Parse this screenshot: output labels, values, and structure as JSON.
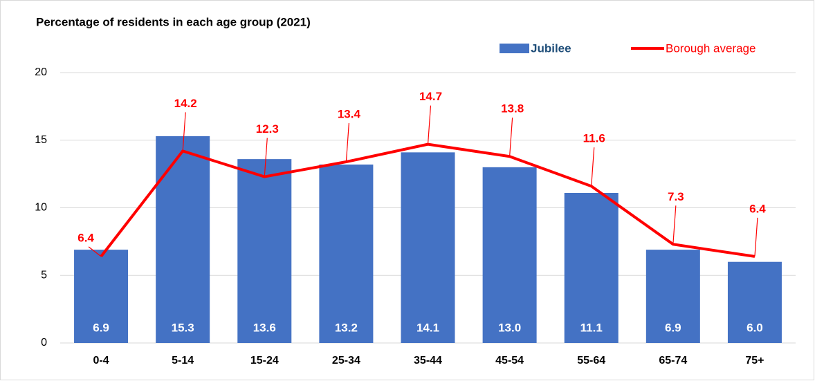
{
  "chart_data": {
    "type": "bar",
    "title": "Percentage of residents in each age group (2021)",
    "categories": [
      "0-4",
      "5-14",
      "15-24",
      "25-34",
      "35-44",
      "45-54",
      "55-64",
      "65-74",
      "75+"
    ],
    "series": [
      {
        "name": "Jubilee",
        "type": "bar",
        "color": "#4472c4",
        "values": [
          6.9,
          15.3,
          13.6,
          13.2,
          14.1,
          13.0,
          11.1,
          6.9,
          6.0
        ],
        "value_labels": [
          "6.9",
          "15.3",
          "13.6",
          "13.2",
          "14.1",
          "13.0",
          "11.1",
          "6.9",
          "6.0"
        ]
      },
      {
        "name": "Borough average",
        "type": "line",
        "color": "#ff0000",
        "values": [
          6.4,
          14.2,
          12.3,
          13.4,
          14.7,
          13.8,
          11.6,
          7.3,
          6.4
        ]
      }
    ],
    "ylim": [
      0,
      20
    ],
    "yticks": [
      0,
      5,
      10,
      15,
      20
    ],
    "grid": true,
    "legend": "top-right"
  }
}
